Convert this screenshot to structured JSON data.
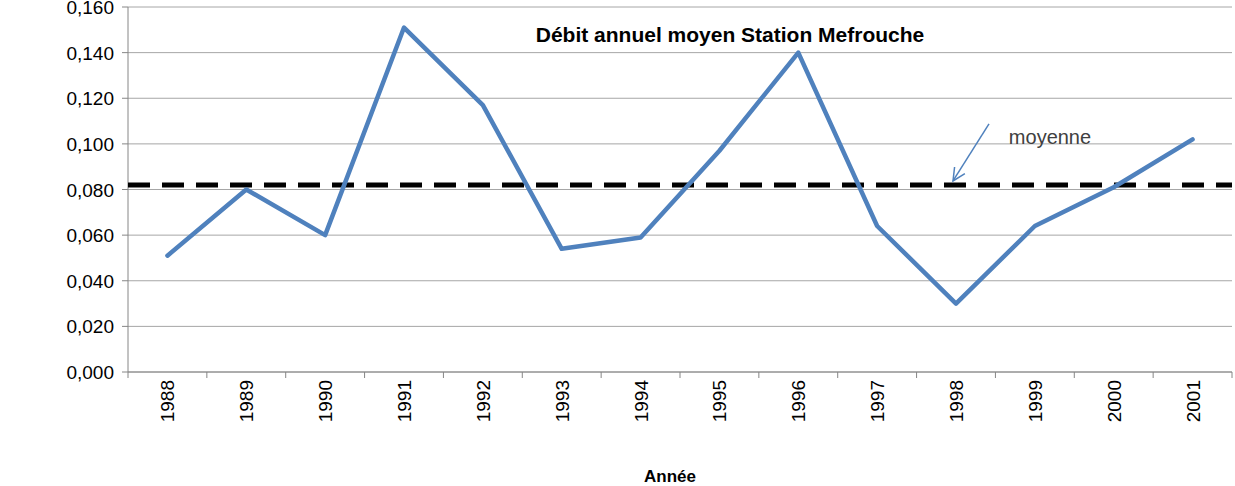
{
  "chart_data": {
    "type": "line",
    "title": "Débit annuel moyen Station Mefrouche",
    "x_label": "Année",
    "categories": [
      "1988",
      "1989",
      "1990",
      "1991",
      "1992",
      "1993",
      "1994",
      "1995",
      "1996",
      "1997",
      "1998",
      "1999",
      "2000",
      "2001"
    ],
    "values": [
      0.051,
      0.08,
      0.06,
      0.151,
      0.117,
      0.054,
      0.059,
      0.097,
      0.14,
      0.064,
      0.03,
      0.064,
      0.081,
      0.102
    ],
    "color": "#4f81bd",
    "ylim": [
      0,
      0.16
    ],
    "yticks": [
      {
        "value": 0,
        "label": "0,000"
      },
      {
        "value": 0.02,
        "label": "0,020"
      },
      {
        "value": 0.04,
        "label": "0,040"
      },
      {
        "value": 0.06,
        "label": "0,060"
      },
      {
        "value": 0.08,
        "label": "0,080"
      },
      {
        "value": 0.1,
        "label": "0,100"
      },
      {
        "value": 0.12,
        "label": "0,120"
      },
      {
        "value": 0.14,
        "label": "0,140"
      },
      {
        "value": 0.16,
        "label": "0,160"
      }
    ],
    "grid": true,
    "reference_line": {
      "label": "moyenne",
      "value": 0.082,
      "color": "#000000",
      "line_style": "dashed"
    }
  }
}
